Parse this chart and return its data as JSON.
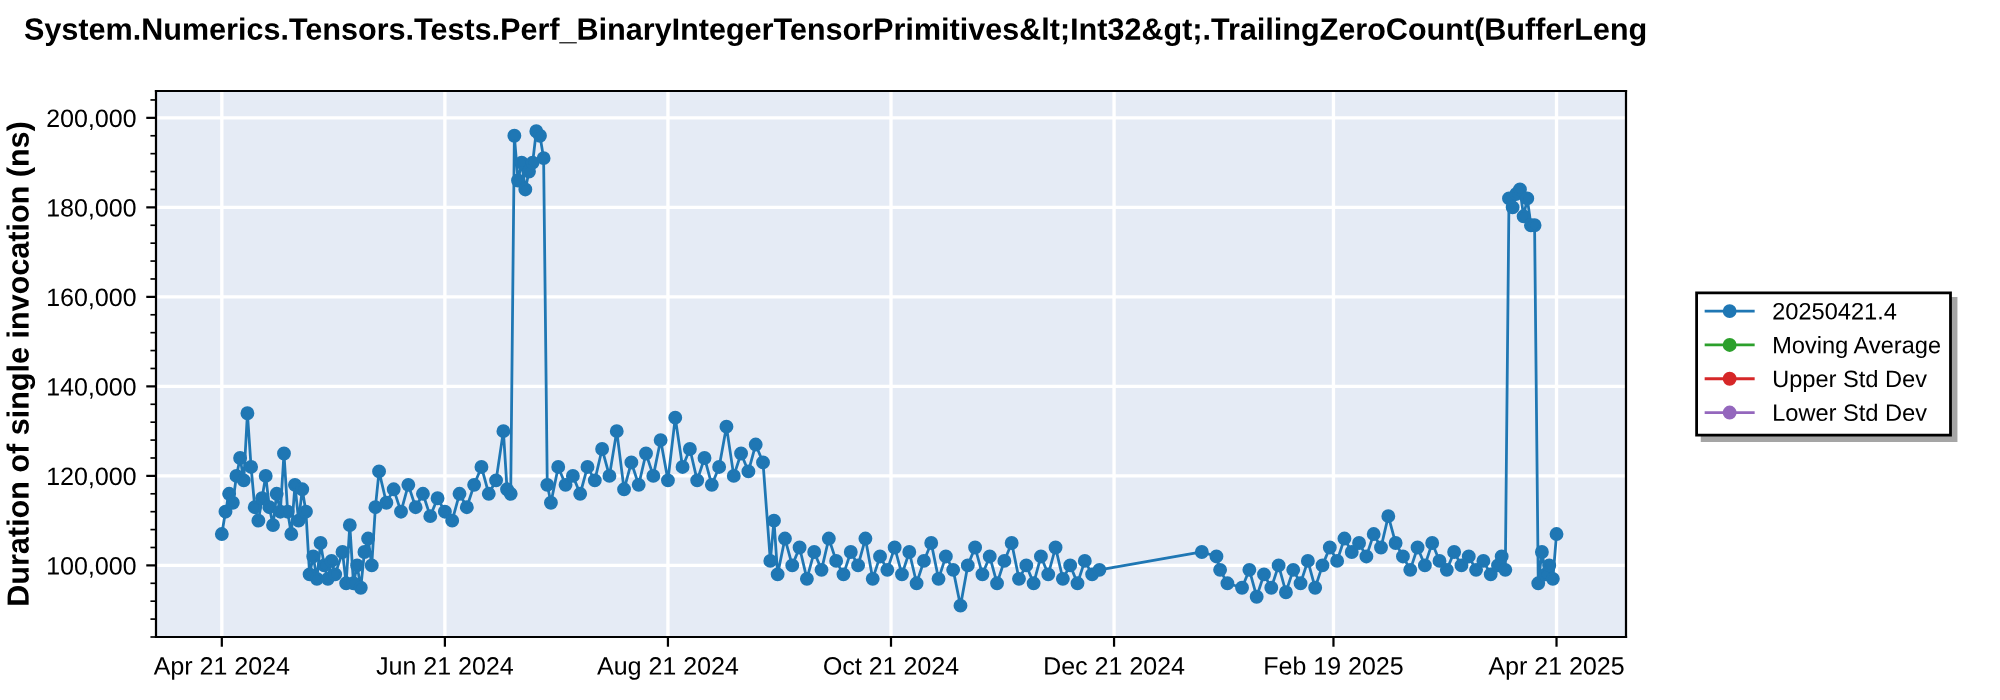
{
  "chart_data": {
    "type": "line",
    "title": "System.Numerics.Tensors.Tests.Perf_BinaryIntegerTensorPrimitives&lt;Int32&gt;.TrailingZeroCount(BufferLeng",
    "ylabel": "Duration of single invocation (ns)",
    "xlim": [
      "2024-04-03",
      "2025-05-10"
    ],
    "ylim": [
      84000,
      206000
    ],
    "xticks": [
      {
        "value": "2024-04-21",
        "label": "Apr 21 2024"
      },
      {
        "value": "2024-06-21",
        "label": "Jun 21 2024"
      },
      {
        "value": "2024-08-21",
        "label": "Aug 21 2024"
      },
      {
        "value": "2024-10-21",
        "label": "Oct 21 2024"
      },
      {
        "value": "2024-12-21",
        "label": "Dec 21 2024"
      },
      {
        "value": "2025-02-19",
        "label": "Feb 19 2025"
      },
      {
        "value": "2025-04-21",
        "label": "Apr 21 2025"
      }
    ],
    "yticks": [
      {
        "value": 100000,
        "label": "100,000"
      },
      {
        "value": 120000,
        "label": "120,000"
      },
      {
        "value": 140000,
        "label": "140,000"
      },
      {
        "value": 160000,
        "label": "160,000"
      },
      {
        "value": 180000,
        "label": "180,000"
      },
      {
        "value": 200000,
        "label": "200,000"
      }
    ],
    "grid": true,
    "legend": "right",
    "marker": "circle",
    "line_style": "solid",
    "series": [
      {
        "name": "20250421.4",
        "color": "#1f77b4",
        "x": [
          "2024-04-21",
          "2024-04-22",
          "2024-04-23",
          "2024-04-24",
          "2024-04-25",
          "2024-04-26",
          "2024-04-27",
          "2024-04-28",
          "2024-04-29",
          "2024-04-30",
          "2024-05-01",
          "2024-05-02",
          "2024-05-03",
          "2024-05-04",
          "2024-05-05",
          "2024-05-06",
          "2024-05-07",
          "2024-05-08",
          "2024-05-09",
          "2024-05-10",
          "2024-05-11",
          "2024-05-12",
          "2024-05-13",
          "2024-05-14",
          "2024-05-15",
          "2024-05-16",
          "2024-05-17",
          "2024-05-18",
          "2024-05-19",
          "2024-05-20",
          "2024-05-21",
          "2024-05-22",
          "2024-05-24",
          "2024-05-25",
          "2024-05-26",
          "2024-05-27",
          "2024-05-28",
          "2024-05-29",
          "2024-05-30",
          "2024-05-31",
          "2024-06-01",
          "2024-06-02",
          "2024-06-03",
          "2024-06-05",
          "2024-06-07",
          "2024-06-09",
          "2024-06-11",
          "2024-06-13",
          "2024-06-15",
          "2024-06-17",
          "2024-06-19",
          "2024-06-21",
          "2024-06-23",
          "2024-06-25",
          "2024-06-27",
          "2024-06-29",
          "2024-07-01",
          "2024-07-03",
          "2024-07-05",
          "2024-07-07",
          "2024-07-08",
          "2024-07-09",
          "2024-07-10",
          "2024-07-11",
          "2024-07-12",
          "2024-07-13",
          "2024-07-14",
          "2024-07-15",
          "2024-07-16",
          "2024-07-17",
          "2024-07-18",
          "2024-07-19",
          "2024-07-20",
          "2024-07-22",
          "2024-07-24",
          "2024-07-26",
          "2024-07-28",
          "2024-07-30",
          "2024-08-01",
          "2024-08-03",
          "2024-08-05",
          "2024-08-07",
          "2024-08-09",
          "2024-08-11",
          "2024-08-13",
          "2024-08-15",
          "2024-08-17",
          "2024-08-19",
          "2024-08-21",
          "2024-08-23",
          "2024-08-25",
          "2024-08-27",
          "2024-08-29",
          "2024-08-31",
          "2024-09-02",
          "2024-09-04",
          "2024-09-06",
          "2024-09-08",
          "2024-09-10",
          "2024-09-12",
          "2024-09-14",
          "2024-09-16",
          "2024-09-18",
          "2024-09-19",
          "2024-09-20",
          "2024-09-22",
          "2024-09-24",
          "2024-09-26",
          "2024-09-28",
          "2024-09-30",
          "2024-10-02",
          "2024-10-04",
          "2024-10-06",
          "2024-10-08",
          "2024-10-10",
          "2024-10-12",
          "2024-10-14",
          "2024-10-16",
          "2024-10-18",
          "2024-10-20",
          "2024-10-22",
          "2024-10-24",
          "2024-10-26",
          "2024-10-28",
          "2024-10-30",
          "2024-11-01",
          "2024-11-03",
          "2024-11-05",
          "2024-11-07",
          "2024-11-09",
          "2024-11-11",
          "2024-11-13",
          "2024-11-15",
          "2024-11-17",
          "2024-11-19",
          "2024-11-21",
          "2024-11-23",
          "2024-11-25",
          "2024-11-27",
          "2024-11-29",
          "2024-12-01",
          "2024-12-03",
          "2024-12-05",
          "2024-12-07",
          "2024-12-09",
          "2024-12-11",
          "2024-12-13",
          "2024-12-15",
          "2024-12-17",
          "2025-01-14",
          "2025-01-18",
          "2025-01-19",
          "2025-01-21",
          "2025-01-25",
          "2025-01-27",
          "2025-01-29",
          "2025-01-31",
          "2025-02-02",
          "2025-02-04",
          "2025-02-06",
          "2025-02-08",
          "2025-02-10",
          "2025-02-12",
          "2025-02-14",
          "2025-02-16",
          "2025-02-18",
          "2025-02-20",
          "2025-02-22",
          "2025-02-24",
          "2025-02-26",
          "2025-02-28",
          "2025-03-02",
          "2025-03-04",
          "2025-03-06",
          "2025-03-08",
          "2025-03-10",
          "2025-03-12",
          "2025-03-14",
          "2025-03-16",
          "2025-03-18",
          "2025-03-20",
          "2025-03-22",
          "2025-03-24",
          "2025-03-26",
          "2025-03-28",
          "2025-03-30",
          "2025-04-01",
          "2025-04-03",
          "2025-04-05",
          "2025-04-06",
          "2025-04-07",
          "2025-04-08",
          "2025-04-09",
          "2025-04-10",
          "2025-04-11",
          "2025-04-12",
          "2025-04-13",
          "2025-04-14",
          "2025-04-15",
          "2025-04-16",
          "2025-04-17",
          "2025-04-18",
          "2025-04-19",
          "2025-04-20",
          "2025-04-21"
        ],
        "values": [
          107000,
          112000,
          116000,
          114000,
          120000,
          124000,
          119000,
          134000,
          122000,
          113000,
          110000,
          115000,
          120000,
          113000,
          109000,
          116000,
          112000,
          125000,
          112000,
          107000,
          118000,
          110000,
          117000,
          112000,
          98000,
          102000,
          97000,
          105000,
          100000,
          97000,
          101000,
          98000,
          103000,
          96000,
          109000,
          96000,
          100000,
          95000,
          103000,
          106000,
          100000,
          113000,
          121000,
          114000,
          117000,
          112000,
          118000,
          113000,
          116000,
          111000,
          115000,
          112000,
          110000,
          116000,
          113000,
          118000,
          122000,
          116000,
          119000,
          130000,
          117000,
          116000,
          196000,
          186000,
          190000,
          184000,
          188000,
          190000,
          197000,
          196000,
          191000,
          118000,
          114000,
          122000,
          118000,
          120000,
          116000,
          122000,
          119000,
          126000,
          120000,
          130000,
          117000,
          123000,
          118000,
          125000,
          120000,
          128000,
          119000,
          133000,
          122000,
          126000,
          119000,
          124000,
          118000,
          122000,
          131000,
          120000,
          125000,
          121000,
          127000,
          123000,
          101000,
          110000,
          98000,
          106000,
          100000,
          104000,
          97000,
          103000,
          99000,
          106000,
          101000,
          98000,
          103000,
          100000,
          106000,
          97000,
          102000,
          99000,
          104000,
          98000,
          103000,
          96000,
          101000,
          105000,
          97000,
          102000,
          99000,
          91000,
          100000,
          104000,
          98000,
          102000,
          96000,
          101000,
          105000,
          97000,
          100000,
          96000,
          102000,
          98000,
          104000,
          97000,
          100000,
          96000,
          101000,
          98000,
          99000,
          103000,
          102000,
          99000,
          96000,
          95000,
          99000,
          93000,
          98000,
          95000,
          100000,
          94000,
          99000,
          96000,
          101000,
          95000,
          100000,
          104000,
          101000,
          106000,
          103000,
          105000,
          102000,
          107000,
          104000,
          111000,
          105000,
          102000,
          99000,
          104000,
          100000,
          105000,
          101000,
          99000,
          103000,
          100000,
          102000,
          99000,
          101000,
          98000,
          100000,
          102000,
          99000,
          182000,
          180000,
          183000,
          184000,
          178000,
          182000,
          176000,
          176000,
          96000,
          103000,
          98000,
          100000,
          97000,
          107000
        ]
      },
      {
        "name": "Moving Average",
        "color": "#2ca02c"
      },
      {
        "name": "Upper Std Dev",
        "color": "#d62728"
      },
      {
        "name": "Lower Std Dev",
        "color": "#9467bd"
      }
    ]
  }
}
